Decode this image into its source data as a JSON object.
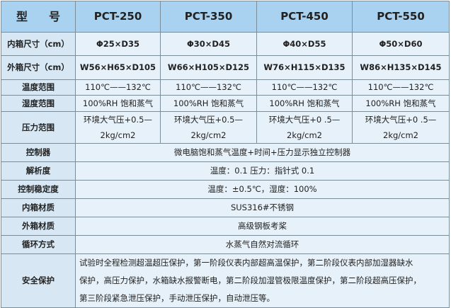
{
  "header": {
    "label_a": "型",
    "label_b": "号",
    "models": [
      "PCT-250",
      "PCT-350",
      "PCT-450",
      "PCT-550"
    ]
  },
  "rows": [
    {
      "label": "内箱尺寸（cm）",
      "values": [
        "Φ25×D35",
        "Φ30×D45",
        "Φ40×D55",
        "Φ50×D60"
      ]
    },
    {
      "label": "外箱尺寸（cm）",
      "values": [
        "W56×H65×D105",
        "W66×H105×D125",
        "W76×H115×D135",
        "W86×H135×D145"
      ]
    },
    {
      "label": "温度范围",
      "values": [
        "110℃——132℃",
        "110℃——132℃",
        "110℃——132℃",
        "110℃——132℃"
      ]
    },
    {
      "label": "湿度范围",
      "values": [
        "100%RH 饱和蒸气",
        "100%RH 饱和蒸气",
        "100%RH 饱和蒸气",
        "100%RH 饱和蒸气"
      ]
    },
    {
      "label": "压力范围",
      "values": [
        "环境大气压+0.5—",
        "环境大气压+0.5—",
        "环境大气压+0 .5—",
        "环境大气压+0 .5—"
      ],
      "values2": [
        "2kg/cm2",
        "2kg/cm2",
        "2kg/cm2",
        "2kg/cm2"
      ]
    }
  ],
  "span_rows": [
    {
      "label": "控制器",
      "value": "微电脑饱和蒸气温度+时间+压力显示独立控制器"
    },
    {
      "label": "解析度",
      "value": "温度：0.1 压力：指针式 0.1"
    },
    {
      "label": "控制稳定度",
      "value": "温度：±0.5℃，湿度：100%"
    },
    {
      "label": "内箱材质",
      "value": "SUS316#不锈钢"
    },
    {
      "label": "外箱材质",
      "value": "高级钢板考桨"
    },
    {
      "label": "循环方式",
      "value": "水蒸气自然对流循环"
    },
    {
      "label": "安全保护",
      "lines": [
        "试验时全程检测超温超压保护，第一阶段仪表内部超高温保护，第二阶段仪表内部加湿器缺水",
        "保护，高压力保护，水箱缺水报警断电，第二阶段加湿管极限温度保护，第二阶段超高压保护，",
        "第三阶段紧急泄压保护，手动泄压保护，自动泄压等。"
      ]
    }
  ]
}
